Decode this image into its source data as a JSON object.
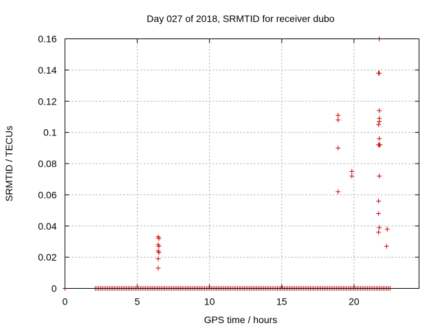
{
  "chart_data": {
    "type": "scatter",
    "title": "Day 027 of 2018, SRMTID for receiver dubo",
    "xlabel": "GPS time / hours",
    "ylabel": "SRMTID / TECUs",
    "xlim": [
      0,
      24.5
    ],
    "ylim": [
      0,
      0.16
    ],
    "grid": true,
    "marker": "+",
    "marker_color": "#cc0000",
    "x_ticks": [
      0,
      5,
      10,
      15,
      20
    ],
    "x_tick_labels": [
      "0",
      "5",
      "10",
      "15",
      "20"
    ],
    "y_ticks": [
      0,
      0.02,
      0.04,
      0.06,
      0.08,
      0.1,
      0.12,
      0.14,
      0.16
    ],
    "y_tick_labels": [
      "0",
      "0.02",
      "0.04",
      "0.06",
      "0.08",
      "0.1",
      "0.12",
      "0.14",
      "0.16"
    ],
    "zero_series": {
      "x_start": 2.1,
      "x_end": 22.6,
      "x_step": 0.12,
      "gap_hours": [],
      "y": 0
    },
    "points": [
      {
        "x": 0.0,
        "y": 0.0
      },
      {
        "x": 6.45,
        "y": 0.033
      },
      {
        "x": 6.5,
        "y": 0.032
      },
      {
        "x": 6.45,
        "y": 0.028
      },
      {
        "x": 6.5,
        "y": 0.027
      },
      {
        "x": 6.45,
        "y": 0.024
      },
      {
        "x": 6.5,
        "y": 0.023
      },
      {
        "x": 6.45,
        "y": 0.019
      },
      {
        "x": 6.45,
        "y": 0.013
      },
      {
        "x": 18.9,
        "y": 0.111
      },
      {
        "x": 18.9,
        "y": 0.108
      },
      {
        "x": 18.9,
        "y": 0.09
      },
      {
        "x": 18.9,
        "y": 0.062
      },
      {
        "x": 19.85,
        "y": 0.075
      },
      {
        "x": 19.85,
        "y": 0.072
      },
      {
        "x": 21.75,
        "y": 0.16
      },
      {
        "x": 21.7,
        "y": 0.138
      },
      {
        "x": 21.75,
        "y": 0.138
      },
      {
        "x": 21.75,
        "y": 0.114
      },
      {
        "x": 21.75,
        "y": 0.109
      },
      {
        "x": 21.75,
        "y": 0.107
      },
      {
        "x": 21.7,
        "y": 0.105
      },
      {
        "x": 21.75,
        "y": 0.096
      },
      {
        "x": 21.7,
        "y": 0.092
      },
      {
        "x": 21.75,
        "y": 0.092
      },
      {
        "x": 21.8,
        "y": 0.092
      },
      {
        "x": 21.75,
        "y": 0.072
      },
      {
        "x": 21.7,
        "y": 0.056
      },
      {
        "x": 21.7,
        "y": 0.048
      },
      {
        "x": 21.75,
        "y": 0.039
      },
      {
        "x": 21.7,
        "y": 0.036
      },
      {
        "x": 22.3,
        "y": 0.038
      },
      {
        "x": 22.25,
        "y": 0.027
      }
    ]
  }
}
